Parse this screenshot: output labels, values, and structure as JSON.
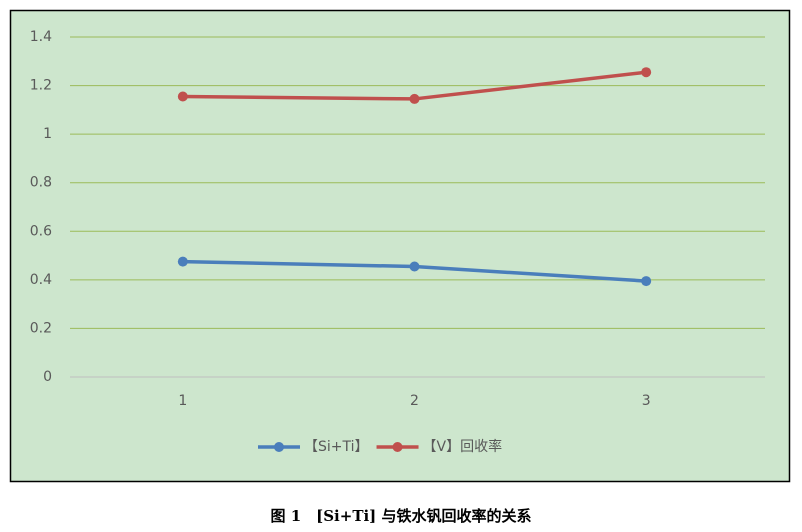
{
  "chart_data": {
    "type": "line",
    "categories": [
      "1",
      "2",
      "3"
    ],
    "series": [
      {
        "name": "【Si+Ti】",
        "color": "#4a7ebb",
        "values": [
          0.475,
          0.455,
          0.395
        ]
      },
      {
        "name": "【V】回收率",
        "color": "#c0504d",
        "values": [
          1.155,
          1.145,
          1.255
        ]
      }
    ],
    "ylim": [
      0,
      1.4
    ],
    "yticks": [
      0,
      0.2,
      0.4,
      0.6,
      0.8,
      1,
      1.2,
      1.4
    ],
    "grid": true,
    "legend": "bottom",
    "caption": "图 1　[Si+Ti] 与铁水钒回收率的关系"
  }
}
